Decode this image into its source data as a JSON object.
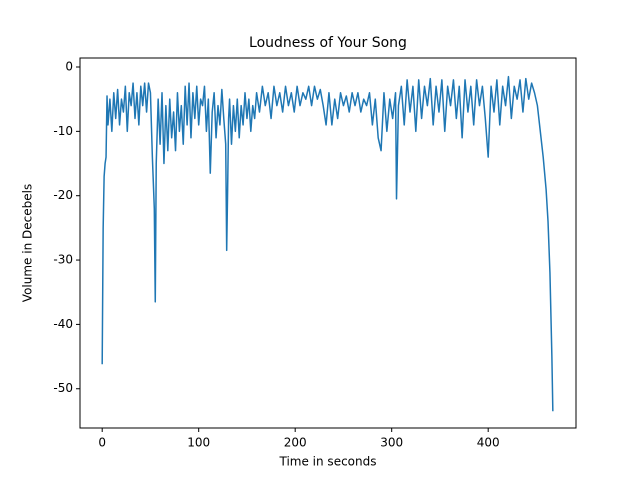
{
  "chart_data": {
    "type": "line",
    "title": "Loudness of Your Song",
    "x_label": "Time in seconds",
    "y_label": "Volume in Decebels",
    "color": "#1f77b4",
    "x": [
      0,
      1,
      2,
      3,
      4,
      5,
      6,
      8,
      10,
      12,
      14,
      16,
      18,
      20,
      22,
      24,
      26,
      28,
      30,
      32,
      34,
      36,
      38,
      40,
      42,
      44,
      46,
      48,
      50,
      52,
      53,
      54,
      55,
      56,
      57,
      58,
      60,
      62,
      64,
      66,
      68,
      70,
      72,
      74,
      76,
      78,
      80,
      82,
      84,
      86,
      88,
      90,
      92,
      94,
      96,
      98,
      100,
      102,
      104,
      106,
      108,
      110,
      112,
      114,
      116,
      118,
      120,
      122,
      124,
      126,
      128,
      129,
      130,
      131,
      132,
      134,
      136,
      138,
      140,
      142,
      144,
      146,
      148,
      150,
      152,
      154,
      156,
      158,
      160,
      163,
      166,
      169,
      172,
      175,
      178,
      181,
      184,
      187,
      190,
      193,
      196,
      199,
      202,
      205,
      208,
      211,
      214,
      217,
      220,
      223,
      226,
      229,
      232,
      235,
      238,
      241,
      244,
      247,
      250,
      253,
      256,
      259,
      262,
      265,
      268,
      271,
      274,
      277,
      280,
      283,
      286,
      289,
      292,
      295,
      298,
      301,
      304,
      305,
      307,
      310,
      313,
      316,
      319,
      322,
      325,
      328,
      331,
      334,
      337,
      340,
      343,
      346,
      349,
      352,
      355,
      358,
      361,
      364,
      367,
      370,
      373,
      376,
      379,
      382,
      385,
      388,
      391,
      394,
      397,
      400,
      403,
      406,
      409,
      412,
      415,
      418,
      421,
      424,
      427,
      430,
      433,
      436,
      439,
      442,
      445,
      448,
      451,
      454,
      457,
      460,
      462,
      464,
      466,
      467
    ],
    "values": [
      -46.2,
      -25,
      -17,
      -15,
      -14,
      -4.5,
      -9,
      -5,
      -10,
      -4,
      -8,
      -3.5,
      -9,
      -5,
      -7,
      -3,
      -10,
      -4,
      -6,
      -2.5,
      -8,
      -4,
      -9,
      -3,
      -6,
      -2.5,
      -7,
      -2.5,
      -4,
      -14,
      -18,
      -22,
      -36.5,
      -15,
      -10,
      -5,
      -12,
      -4,
      -15,
      -6,
      -13,
      -5,
      -11,
      -7,
      -13,
      -4,
      -10,
      -6,
      -12,
      -3,
      -9,
      -2.5,
      -11,
      -4,
      -8,
      -3,
      -9,
      -5,
      -6,
      -3,
      -10,
      -5,
      -16.5,
      -7,
      -4,
      -11,
      -6,
      -9,
      -3.5,
      -8,
      -12,
      -28.5,
      -19,
      -8,
      -5,
      -12,
      -6,
      -10,
      -5,
      -11,
      -6,
      -9,
      -4,
      -8,
      -5,
      -10,
      -6,
      -8,
      -4,
      -7,
      -3,
      -6,
      -4,
      -8,
      -3,
      -6,
      -4,
      -7,
      -3,
      -6,
      -4,
      -7,
      -3,
      -6,
      -4,
      -5,
      -3,
      -6,
      -3,
      -5,
      -3.5,
      -6,
      -9,
      -4,
      -9,
      -5,
      -8,
      -4,
      -6,
      -4.5,
      -7,
      -4,
      -6,
      -4,
      -7,
      -5,
      -6,
      -4,
      -9,
      -5,
      -11,
      -13,
      -4,
      -10,
      -5,
      -8,
      -4,
      -20.5,
      -6,
      -3,
      -9,
      -2,
      -7,
      -3,
      -10,
      -2,
      -8,
      -3,
      -6,
      -1.8,
      -9,
      -3,
      -7,
      -2,
      -10,
      -3,
      -6,
      -2,
      -8,
      -3,
      -11,
      -2,
      -7,
      -3,
      -9,
      -2,
      -6,
      -3,
      -8,
      -14,
      -3,
      -7,
      -2,
      -9,
      -3,
      -6,
      -1.5,
      -8,
      -3,
      -5,
      -2,
      -7,
      -1.8,
      -5,
      -2.5,
      -4,
      -6,
      -10,
      -14,
      -19,
      -24,
      -32,
      -45,
      -53.5
    ],
    "xlim": [
      -23,
      491
    ],
    "ylim": [
      -56.1,
      1.4
    ],
    "xticks": [
      0,
      100,
      200,
      300,
      400
    ],
    "yticks": [
      -50,
      -40,
      -30,
      -20,
      -10,
      0
    ]
  }
}
